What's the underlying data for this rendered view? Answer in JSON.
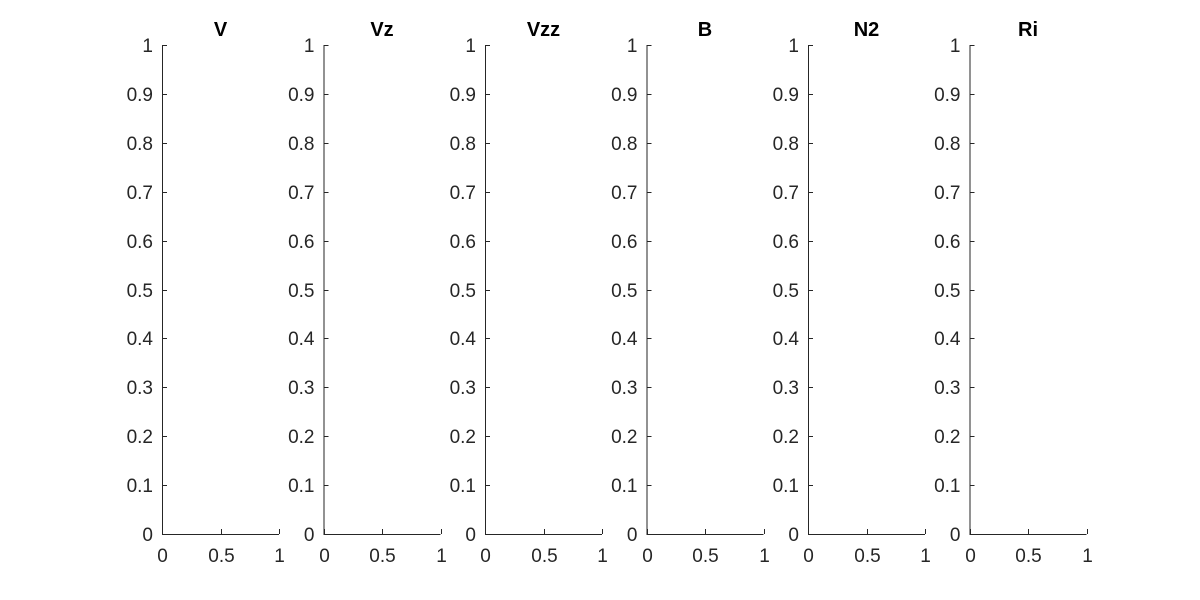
{
  "chart_data": [
    {
      "type": "line",
      "title": "V",
      "xlabel": "",
      "ylabel": "",
      "xlim": [
        0,
        1
      ],
      "ylim": [
        0,
        1
      ],
      "xticks": [
        0,
        0.5,
        1
      ],
      "xtick_labels": [
        "0",
        "0.5",
        "1"
      ],
      "yticks": [
        0,
        0.1,
        0.2,
        0.3,
        0.4,
        0.5,
        0.6,
        0.7,
        0.8,
        0.9,
        1
      ],
      "ytick_labels": [
        "0",
        "0.1",
        "0.2",
        "0.3",
        "0.4",
        "0.5",
        "0.6",
        "0.7",
        "0.8",
        "0.9",
        "1"
      ],
      "grid": false,
      "series": []
    },
    {
      "type": "line",
      "title": "Vz",
      "xlabel": "",
      "ylabel": "",
      "xlim": [
        0,
        1
      ],
      "ylim": [
        0,
        1
      ],
      "xticks": [
        0,
        0.5,
        1
      ],
      "xtick_labels": [
        "0",
        "0.5",
        "1"
      ],
      "yticks": [
        0,
        0.1,
        0.2,
        0.3,
        0.4,
        0.5,
        0.6,
        0.7,
        0.8,
        0.9,
        1
      ],
      "ytick_labels": [
        "0",
        "0.1",
        "0.2",
        "0.3",
        "0.4",
        "0.5",
        "0.6",
        "0.7",
        "0.8",
        "0.9",
        "1"
      ],
      "grid": false,
      "series": []
    },
    {
      "type": "line",
      "title": "Vzz",
      "xlabel": "",
      "ylabel": "",
      "xlim": [
        0,
        1
      ],
      "ylim": [
        0,
        1
      ],
      "xticks": [
        0,
        0.5,
        1
      ],
      "xtick_labels": [
        "0",
        "0.5",
        "1"
      ],
      "yticks": [
        0,
        0.1,
        0.2,
        0.3,
        0.4,
        0.5,
        0.6,
        0.7,
        0.8,
        0.9,
        1
      ],
      "ytick_labels": [
        "0",
        "0.1",
        "0.2",
        "0.3",
        "0.4",
        "0.5",
        "0.6",
        "0.7",
        "0.8",
        "0.9",
        "1"
      ],
      "grid": false,
      "series": []
    },
    {
      "type": "line",
      "title": "B",
      "xlabel": "",
      "ylabel": "",
      "xlim": [
        0,
        1
      ],
      "ylim": [
        0,
        1
      ],
      "xticks": [
        0,
        0.5,
        1
      ],
      "xtick_labels": [
        "0",
        "0.5",
        "1"
      ],
      "yticks": [
        0,
        0.1,
        0.2,
        0.3,
        0.4,
        0.5,
        0.6,
        0.7,
        0.8,
        0.9,
        1
      ],
      "ytick_labels": [
        "0",
        "0.1",
        "0.2",
        "0.3",
        "0.4",
        "0.5",
        "0.6",
        "0.7",
        "0.8",
        "0.9",
        "1"
      ],
      "grid": false,
      "series": []
    },
    {
      "type": "line",
      "title": "N2",
      "xlabel": "",
      "ylabel": "",
      "xlim": [
        0,
        1
      ],
      "ylim": [
        0,
        1
      ],
      "xticks": [
        0,
        0.5,
        1
      ],
      "xtick_labels": [
        "0",
        "0.5",
        "1"
      ],
      "yticks": [
        0,
        0.1,
        0.2,
        0.3,
        0.4,
        0.5,
        0.6,
        0.7,
        0.8,
        0.9,
        1
      ],
      "ytick_labels": [
        "0",
        "0.1",
        "0.2",
        "0.3",
        "0.4",
        "0.5",
        "0.6",
        "0.7",
        "0.8",
        "0.9",
        "1"
      ],
      "grid": false,
      "series": []
    },
    {
      "type": "line",
      "title": "Ri",
      "xlabel": "",
      "ylabel": "",
      "xlim": [
        0,
        1
      ],
      "ylim": [
        0,
        1
      ],
      "xticks": [
        0,
        0.5,
        1
      ],
      "xtick_labels": [
        "0",
        "0.5",
        "1"
      ],
      "yticks": [
        0,
        0.1,
        0.2,
        0.3,
        0.4,
        0.5,
        0.6,
        0.7,
        0.8,
        0.9,
        1
      ],
      "ytick_labels": [
        "0",
        "0.1",
        "0.2",
        "0.3",
        "0.4",
        "0.5",
        "0.6",
        "0.7",
        "0.8",
        "0.9",
        "1"
      ],
      "grid": false,
      "series": []
    }
  ],
  "colors": {
    "axis": "#262626",
    "title": "#000000",
    "background": "#ffffff"
  }
}
